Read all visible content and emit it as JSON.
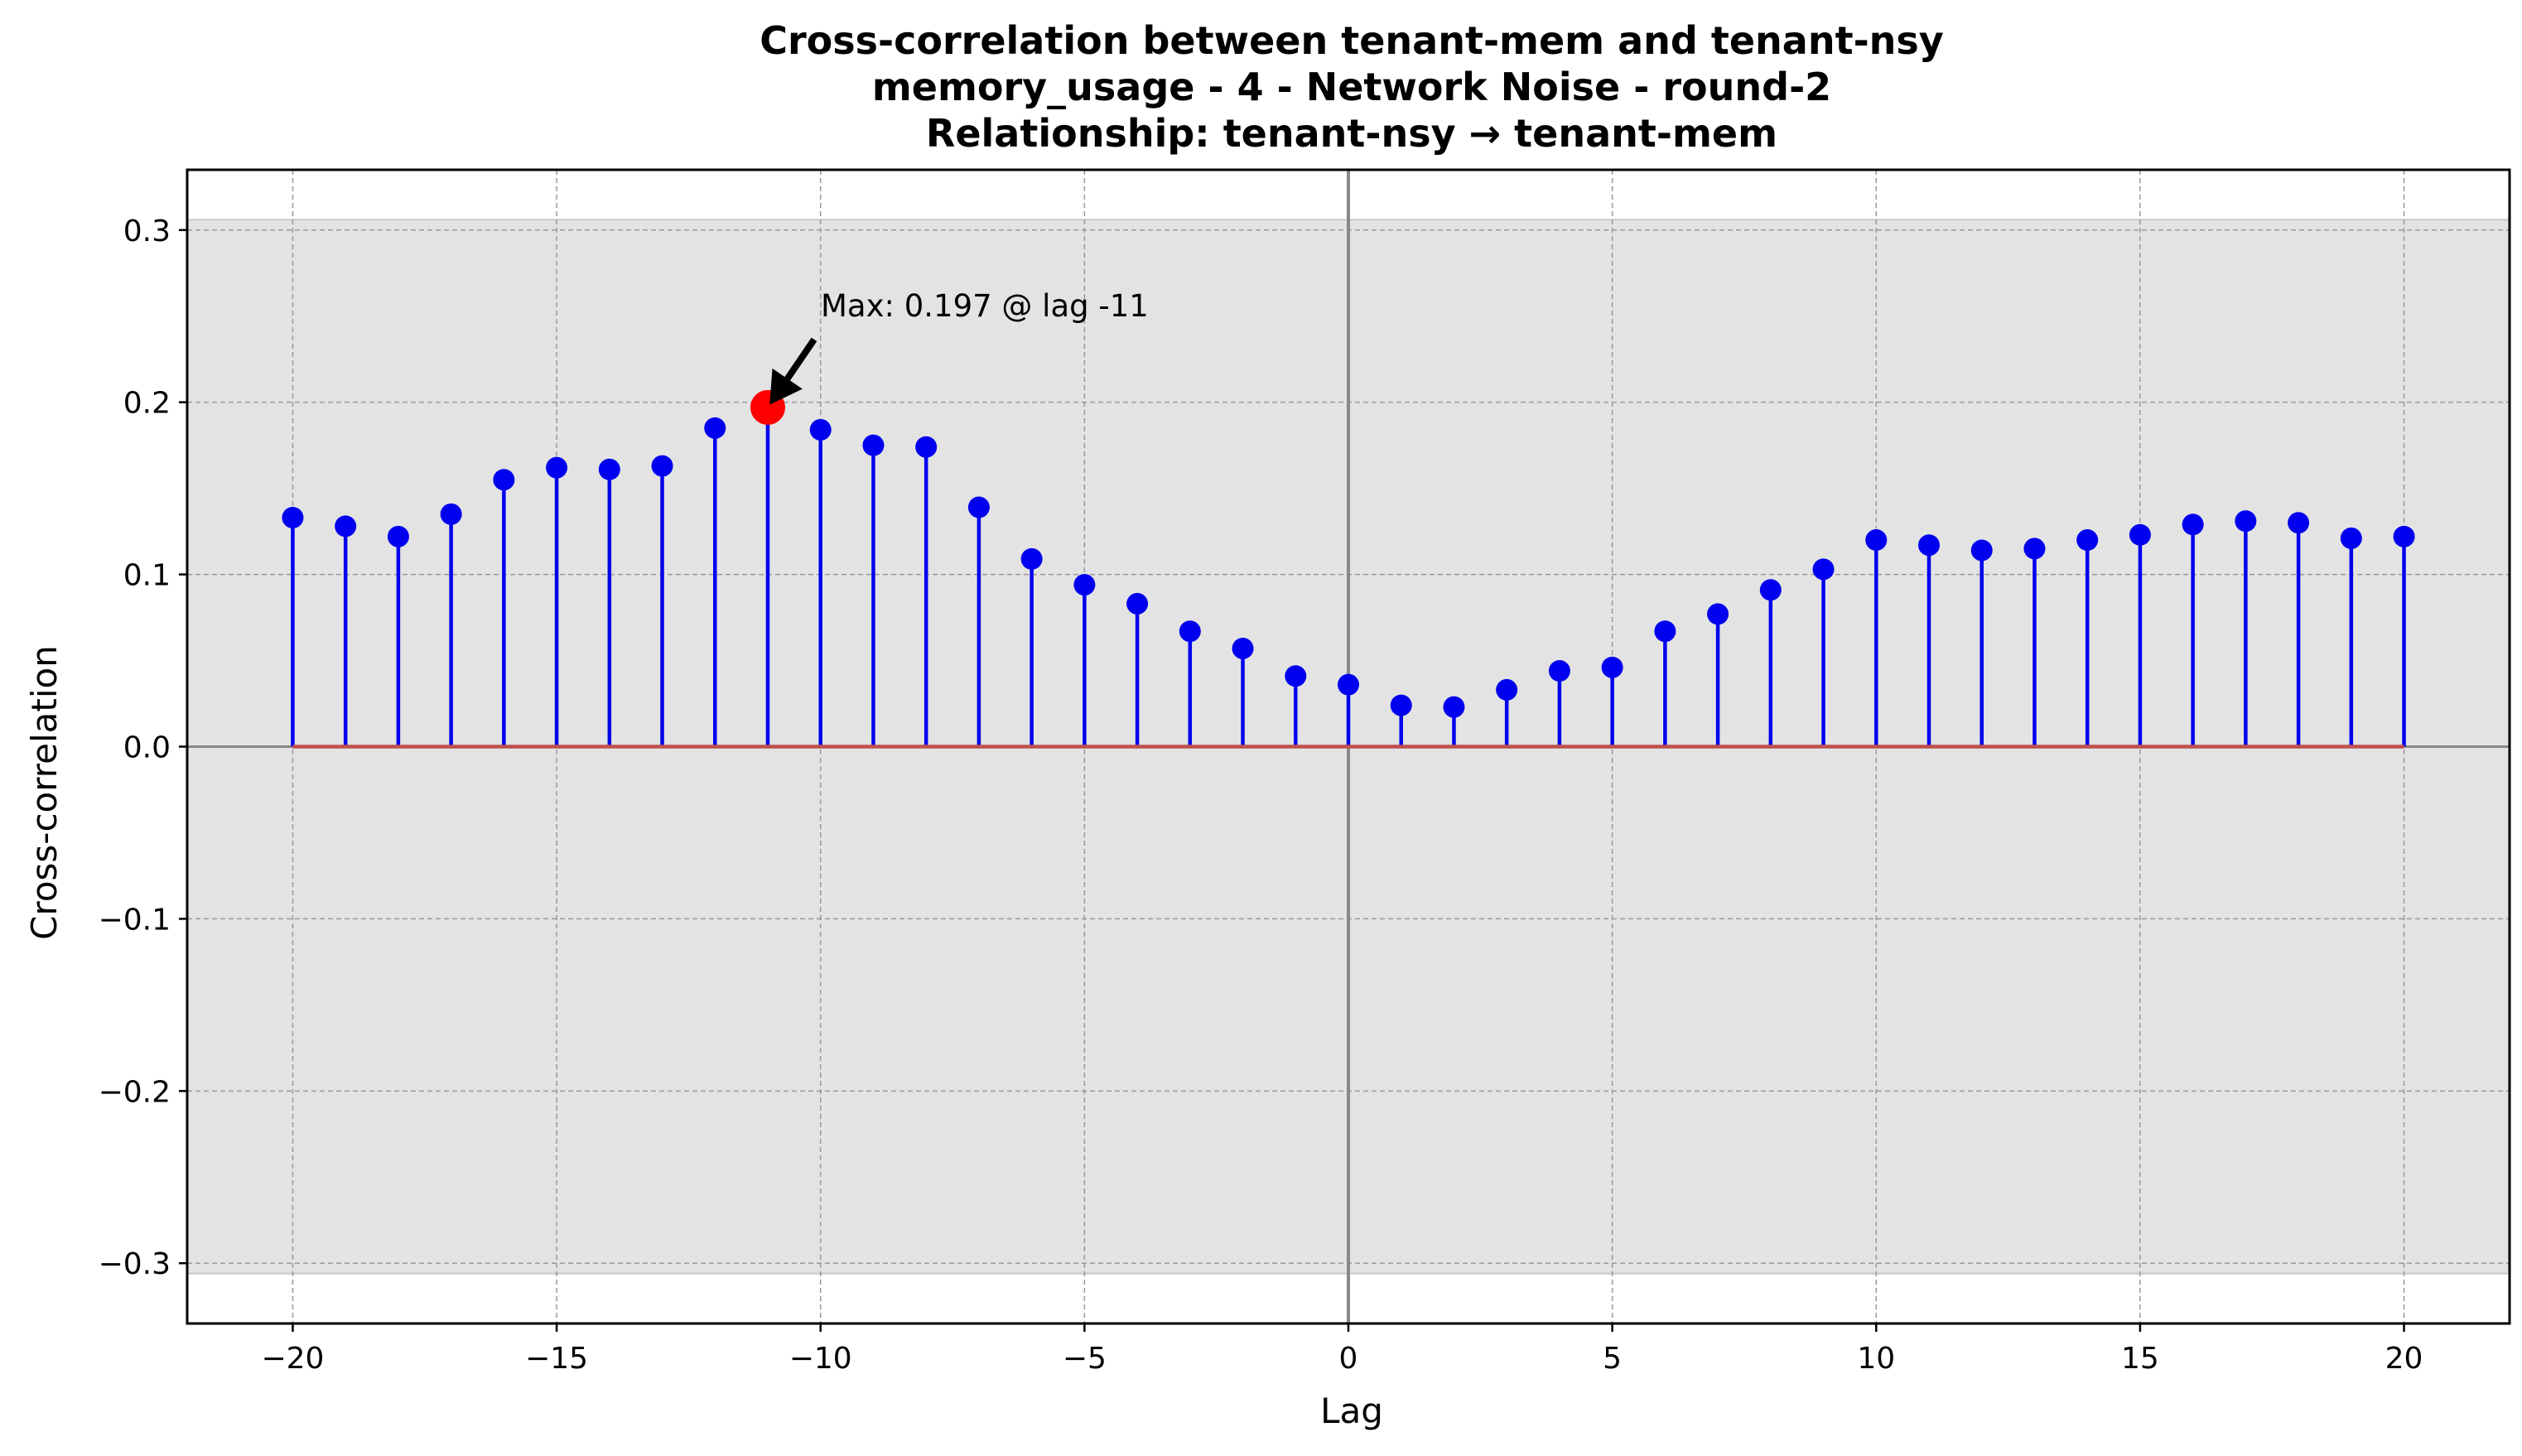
{
  "chart_data": {
    "type": "stem",
    "title": [
      "Cross-correlation between tenant-mem and tenant-nsy",
      "memory_usage - 4 - Network Noise - round-2",
      "Relationship: tenant-nsy → tenant-mem"
    ],
    "xlabel": "Lag",
    "ylabel": "Cross-correlation",
    "xlim": [
      -22,
      22
    ],
    "ylim": [
      -0.335,
      0.335
    ],
    "xticks": [
      -20,
      -15,
      -10,
      -5,
      0,
      5,
      10,
      15,
      20
    ],
    "xtick_labels": [
      "−20",
      "−15",
      "−10",
      "−5",
      "0",
      "5",
      "10",
      "15",
      "20"
    ],
    "yticks": [
      0.3,
      0.2,
      0.1,
      0.0,
      -0.1,
      -0.2,
      -0.3
    ],
    "ytick_labels": [
      "0.3",
      "0.2",
      "0.1",
      "0.0",
      "−0.1",
      "−0.2",
      "−0.3"
    ],
    "grid": true,
    "confidence_band": [
      -0.306,
      0.306
    ],
    "x": [
      -20,
      -19,
      -18,
      -17,
      -16,
      -15,
      -14,
      -13,
      -12,
      -11,
      -10,
      -9,
      -8,
      -7,
      -6,
      -5,
      -4,
      -3,
      -2,
      -1,
      0,
      1,
      2,
      3,
      4,
      5,
      6,
      7,
      8,
      9,
      10,
      11,
      12,
      13,
      14,
      15,
      16,
      17,
      18,
      19,
      20
    ],
    "values": [
      0.133,
      0.128,
      0.122,
      0.135,
      0.155,
      0.162,
      0.161,
      0.163,
      0.185,
      0.197,
      0.184,
      0.175,
      0.174,
      0.139,
      0.109,
      0.094,
      0.083,
      0.067,
      0.057,
      0.041,
      0.036,
      0.024,
      0.023,
      0.033,
      0.044,
      0.046,
      0.067,
      0.077,
      0.091,
      0.103,
      0.12,
      0.117,
      0.114,
      0.115,
      0.12,
      0.123,
      0.129,
      0.131,
      0.13,
      0.121,
      0.122
    ],
    "max_point": {
      "lag": -11,
      "value": 0.197
    },
    "annotation": "Max: 0.197 @ lag -11",
    "colors": {
      "stem": "#0000ee",
      "baseline": "#c0504d",
      "max_marker": "#ff0000",
      "band": "#e3e3e3",
      "zero_lines": "#888888",
      "grid": "#999999"
    }
  }
}
